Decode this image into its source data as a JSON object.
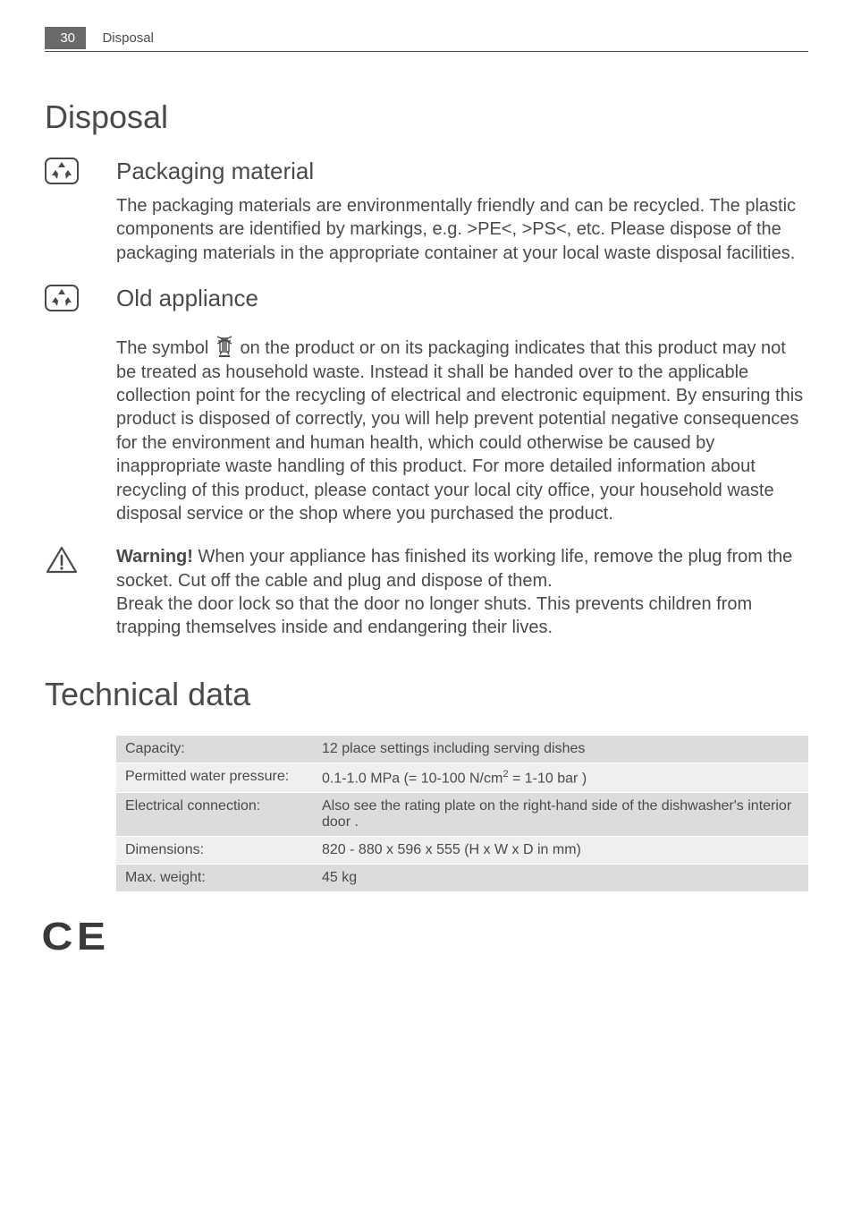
{
  "header": {
    "page_number": "30",
    "running_title": "Disposal"
  },
  "section1": {
    "title": "Disposal",
    "sub1": {
      "title": "Packaging material",
      "body": "The packaging materials are environmentally friendly and can be recycled. The plastic components are identified by markings, e.g. >PE<, >PS<, etc. Please dispose of the packaging materials in the appropriate container at your local waste disposal facilities."
    },
    "sub2": {
      "title": "Old appliance",
      "body_pre": "The symbol ",
      "body_post": " on the product or on its packaging indicates that this product may not be treated as household waste. Instead it shall be handed over to the applicable collection point for the recycling of electrical and electronic equipment. By ensuring this product is disposed of correctly, you will help prevent potential negative consequences for the environment and human health, which could otherwise be caused by inappropriate waste handling of this product. For more detailed information about recycling of this product, please contact your local city office, your household waste disposal service or the shop where you purchased the product."
    },
    "warning": {
      "label": "Warning!",
      "body": " When your appliance has finished its working life, remove the plug from the socket. Cut off the cable and plug and dispose of them.\nBreak the door lock so that the door no longer shuts. This prevents children from trapping themselves inside and endangering their lives."
    }
  },
  "section2": {
    "title": "Technical data",
    "rows": [
      {
        "label": "Capacity:",
        "value": "12 place settings including serving dishes"
      },
      {
        "label": "Permitted water pressure:",
        "value_html": "0.1-1.0 MPa (= 10-100 N/cm² = 1-10 bar )"
      },
      {
        "label": "Electrical connection:",
        "value": "Also see the rating plate on the right-hand side of the dishwasher's interior door ."
      },
      {
        "label": "Dimensions:",
        "value": "820 - 880 x 596 x 555 (H x W x D in mm)"
      },
      {
        "label": "Max. weight:",
        "value": "45 kg"
      }
    ]
  },
  "icons": {
    "recycle_stroke": "#4a4a4a",
    "warning_stroke": "#4a4a4a",
    "weee_stroke": "#4a4a4a"
  }
}
